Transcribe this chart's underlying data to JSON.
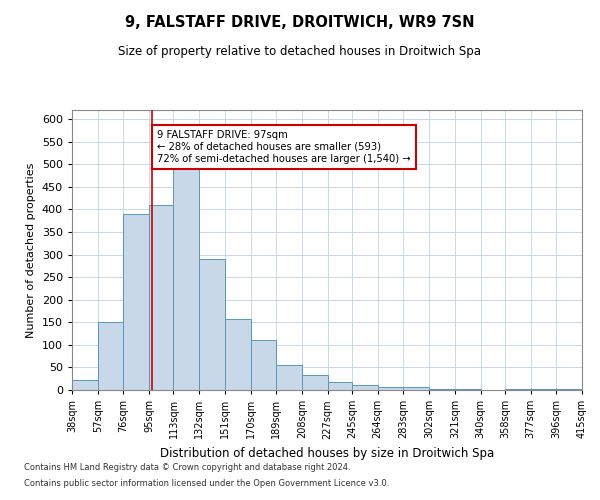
{
  "title": "9, FALSTAFF DRIVE, DROITWICH, WR9 7SN",
  "subtitle": "Size of property relative to detached houses in Droitwich Spa",
  "xlabel": "Distribution of detached houses by size in Droitwich Spa",
  "ylabel": "Number of detached properties",
  "bar_color": "#c8d8e8",
  "bar_edge_color": "#5599bb",
  "background_color": "#ffffff",
  "grid_color": "#c8d8e8",
  "annotation_line_color": "#cc0000",
  "annotation_box_color": "#cc0000",
  "annotation_text": "9 FALSTAFF DRIVE: 97sqm\n← 28% of detached houses are smaller (593)\n72% of semi-detached houses are larger (1,540) →",
  "property_size": 97,
  "bin_edges": [
    38,
    57,
    76,
    95,
    113,
    132,
    151,
    170,
    189,
    208,
    227,
    245,
    264,
    283,
    302,
    321,
    340,
    358,
    377,
    396,
    415
  ],
  "bin_labels": [
    "38sqm",
    "57sqm",
    "76sqm",
    "95sqm",
    "113sqm",
    "132sqm",
    "151sqm",
    "170sqm",
    "189sqm",
    "208sqm",
    "227sqm",
    "245sqm",
    "264sqm",
    "283sqm",
    "302sqm",
    "321sqm",
    "340sqm",
    "358sqm",
    "377sqm",
    "396sqm",
    "415sqm"
  ],
  "counts": [
    23,
    150,
    390,
    410,
    500,
    290,
    158,
    110,
    55,
    33,
    18,
    10,
    7,
    7,
    3,
    3,
    0,
    3,
    3,
    3
  ],
  "ylim": [
    0,
    620
  ],
  "yticks": [
    0,
    50,
    100,
    150,
    200,
    250,
    300,
    350,
    400,
    450,
    500,
    550,
    600
  ],
  "footnote1": "Contains HM Land Registry data © Crown copyright and database right 2024.",
  "footnote2": "Contains public sector information licensed under the Open Government Licence v3.0."
}
